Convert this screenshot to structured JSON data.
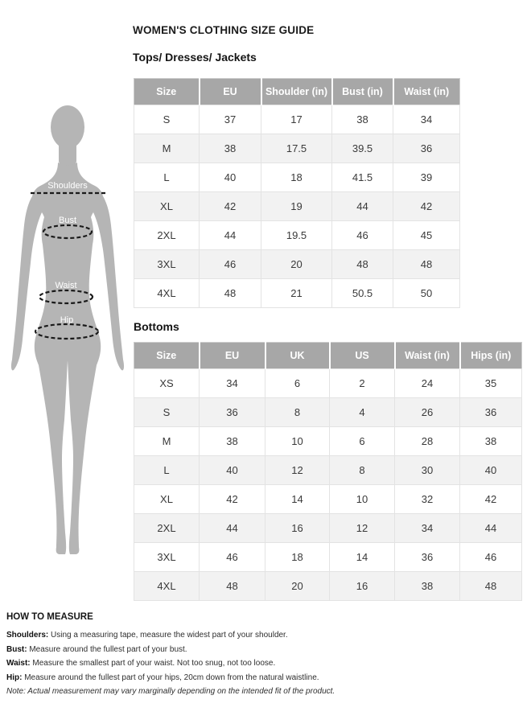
{
  "page": {
    "title": "WOMEN'S CLOTHING SIZE GUIDE"
  },
  "figure": {
    "labels": {
      "shoulders": "Shoulders",
      "bust": "Bust",
      "waist": "Waist",
      "hip": "Hip"
    }
  },
  "tops_table": {
    "section_title": "Tops/ Dresses/ Jackets",
    "headers": [
      "Size",
      "EU",
      "Shoulder (in)",
      "Bust (in)",
      "Waist (in)"
    ],
    "rows": [
      [
        "S",
        "37",
        "17",
        "38",
        "34"
      ],
      [
        "M",
        "38",
        "17.5",
        "39.5",
        "36"
      ],
      [
        "L",
        "40",
        "18",
        "41.5",
        "39"
      ],
      [
        "XL",
        "42",
        "19",
        "44",
        "42"
      ],
      [
        "2XL",
        "44",
        "19.5",
        "46",
        "45"
      ],
      [
        "3XL",
        "46",
        "20",
        "48",
        "48"
      ],
      [
        "4XL",
        "48",
        "21",
        "50.5",
        "50"
      ]
    ]
  },
  "bottoms_table": {
    "section_title": "Bottoms",
    "headers": [
      "Size",
      "EU",
      "UK",
      "US",
      "Waist (in)",
      "Hips (in)"
    ],
    "rows": [
      [
        "XS",
        "34",
        "6",
        "2",
        "24",
        "35"
      ],
      [
        "S",
        "36",
        "8",
        "4",
        "26",
        "36"
      ],
      [
        "M",
        "38",
        "10",
        "6",
        "28",
        "38"
      ],
      [
        "L",
        "40",
        "12",
        "8",
        "30",
        "40"
      ],
      [
        "XL",
        "42",
        "14",
        "10",
        "32",
        "42"
      ],
      [
        "2XL",
        "44",
        "16",
        "12",
        "34",
        "44"
      ],
      [
        "3XL",
        "46",
        "18",
        "14",
        "36",
        "46"
      ],
      [
        "4XL",
        "48",
        "20",
        "16",
        "38",
        "48"
      ]
    ]
  },
  "how_to_measure": {
    "title": "HOW TO MEASURE",
    "items": [
      {
        "label": "Shoulders:",
        "text": "Using a measuring tape, measure the widest part of your shoulder."
      },
      {
        "label": "Bust:",
        "text": "Measure around the fullest part of your bust."
      },
      {
        "label": "Waist:",
        "text": "Measure the smallest part of your waist. Not too snug, not too loose."
      },
      {
        "label": "Hip:",
        "text": "Measure around the fullest part of your hips, 20cm down from the natural waistline."
      }
    ],
    "note": "Note: Actual measurement may vary marginally depending on the intended fit of the product."
  },
  "colors": {
    "header_bg": "#a7a7a7",
    "header_text": "#ffffff",
    "row_alt_bg": "#f2f2f2",
    "silhouette": "#b5b5b5",
    "dash": "#1a1a1a"
  }
}
